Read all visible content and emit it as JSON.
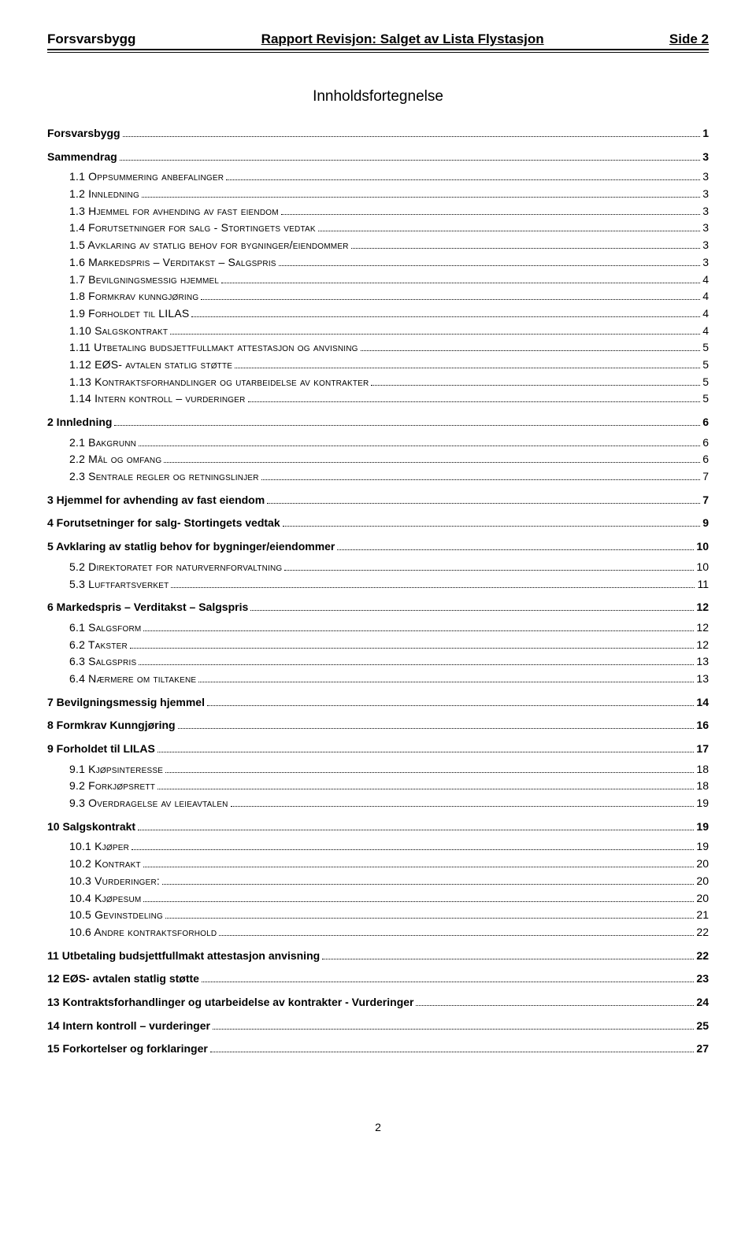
{
  "header": {
    "left": "Forsvarsbygg",
    "center": "Rapport Revisjon: Salget av Lista Flystasjon",
    "right": "Side  2"
  },
  "toc_title": "Innholdsfortegnelse",
  "entries": [
    {
      "level": 1,
      "bold": true,
      "label": "Forsvarsbygg",
      "page": "1"
    },
    {
      "level": 1,
      "bold": true,
      "label": "Sammendrag",
      "page": "3"
    },
    {
      "level": 2,
      "sc": true,
      "label": "1.1 Oppsummering anbefalinger",
      "page": "3"
    },
    {
      "level": 2,
      "sc": true,
      "label": "1.2 Innledning",
      "page": "3"
    },
    {
      "level": 2,
      "sc": true,
      "label": "1.3 Hjemmel for avhending av fast eiendom",
      "page": "3"
    },
    {
      "level": 2,
      "sc": true,
      "label": "1.4 Forutsetninger for salg - Stortingets vedtak",
      "page": "3"
    },
    {
      "level": 2,
      "sc": true,
      "label": "1.5 Avklaring av statlig behov for bygninger/eiendommer",
      "page": "3"
    },
    {
      "level": 2,
      "sc": true,
      "label": "1.6 Markedspris – Verditakst – Salgspris",
      "page": "3"
    },
    {
      "level": 2,
      "sc": true,
      "label": "1.7 Bevilgningsmessig hjemmel",
      "page": "4"
    },
    {
      "level": 2,
      "sc": true,
      "label": "1.8 Formkrav kunngjøring",
      "page": "4"
    },
    {
      "level": 2,
      "sc": true,
      "label": "1.9 Forholdet til LILAS",
      "page": "4"
    },
    {
      "level": 2,
      "sc": true,
      "label": "1.10 Salgskontrakt",
      "page": "4"
    },
    {
      "level": 2,
      "sc": true,
      "label": "1.11 Utbetaling budsjettfullmakt attestasjon og anvisning",
      "page": "5"
    },
    {
      "level": 2,
      "sc": true,
      "label": "1.12 EØS- avtalen statlig støtte",
      "page": "5"
    },
    {
      "level": 2,
      "sc": true,
      "label": "1.13 Kontraktsforhandlinger og utarbeidelse av kontrakter",
      "page": "5"
    },
    {
      "level": 2,
      "sc": true,
      "label": "1.14 Intern kontroll – vurderinger",
      "page": "5"
    },
    {
      "level": 1,
      "bold": true,
      "label": "2 Innledning",
      "page": "6"
    },
    {
      "level": 2,
      "sc": true,
      "label": "2.1 Bakgrunn",
      "page": "6"
    },
    {
      "level": 2,
      "sc": true,
      "label": "2.2 Mål og omfang",
      "page": "6"
    },
    {
      "level": 2,
      "sc": true,
      "label": "2.3 Sentrale regler og retningslinjer",
      "page": "7"
    },
    {
      "level": 1,
      "bold": true,
      "label": "3 Hjemmel for avhending av fast eiendom",
      "page": "7"
    },
    {
      "level": 1,
      "bold": true,
      "label": "4 Forutsetninger for salg- Stortingets vedtak",
      "page": "9"
    },
    {
      "level": 1,
      "bold": true,
      "label": "5 Avklaring av statlig behov for bygninger/eiendommer",
      "page": "10"
    },
    {
      "level": 2,
      "sc": true,
      "label": "5.2 Direktoratet for naturvernforvaltning",
      "page": "10"
    },
    {
      "level": 2,
      "sc": true,
      "label": "5.3 Luftfartsverket",
      "page": "11"
    },
    {
      "level": 1,
      "bold": true,
      "label": "6 Markedspris – Verditakst – Salgspris",
      "page": "12"
    },
    {
      "level": 2,
      "sc": true,
      "label": "6.1 Salgsform",
      "page": "12"
    },
    {
      "level": 2,
      "sc": true,
      "label": "6.2 Takster",
      "page": "12"
    },
    {
      "level": 2,
      "sc": true,
      "label": "6.3 Salgspris",
      "page": "13"
    },
    {
      "level": 2,
      "sc": true,
      "label": "6.4 Nærmere om tiltakene",
      "page": "13"
    },
    {
      "level": 1,
      "bold": true,
      "label": "7 Bevilgningsmessig hjemmel",
      "page": "14"
    },
    {
      "level": 1,
      "bold": true,
      "label": "8 Formkrav Kunngjøring",
      "page": "16"
    },
    {
      "level": 1,
      "bold": true,
      "label": "9 Forholdet til LILAS",
      "page": "17"
    },
    {
      "level": 2,
      "sc": true,
      "label": "9.1 Kjøpsinteresse",
      "page": "18"
    },
    {
      "level": 2,
      "sc": true,
      "label": "9.2 Forkjøpsrett",
      "page": "18"
    },
    {
      "level": 2,
      "sc": true,
      "label": "9.3 Overdragelse av leieavtalen",
      "page": "19"
    },
    {
      "level": 1,
      "bold": true,
      "label": "10 Salgskontrakt",
      "page": "19"
    },
    {
      "level": 2,
      "sc": true,
      "label": "10.1 Kjøper",
      "page": "19"
    },
    {
      "level": 2,
      "sc": true,
      "label": "10.2 Kontrakt",
      "page": "20"
    },
    {
      "level": 2,
      "sc": true,
      "label": "10.3 Vurderinger:",
      "page": "20"
    },
    {
      "level": 2,
      "sc": true,
      "label": "10.4 Kjøpesum",
      "page": "20"
    },
    {
      "level": 2,
      "sc": true,
      "label": "10.5 Gevinstdeling",
      "page": "21"
    },
    {
      "level": 2,
      "sc": true,
      "label": "10.6 Andre kontraktsforhold",
      "page": "22"
    },
    {
      "level": 1,
      "bold": true,
      "label": "11 Utbetaling budsjettfullmakt attestasjon anvisning",
      "page": "22"
    },
    {
      "level": 1,
      "bold": true,
      "label": "12 EØS- avtalen statlig støtte",
      "page": "23"
    },
    {
      "level": 1,
      "bold": true,
      "label": "13 Kontraktsforhandlinger og utarbeidelse av kontrakter - Vurderinger",
      "page": "24"
    },
    {
      "level": 1,
      "bold": true,
      "label": "14 Intern kontroll – vurderinger",
      "page": "25"
    },
    {
      "level": 1,
      "bold": true,
      "label": "15 Forkortelser og forklaringer",
      "page": "27"
    }
  ],
  "footer_page_number": "2"
}
